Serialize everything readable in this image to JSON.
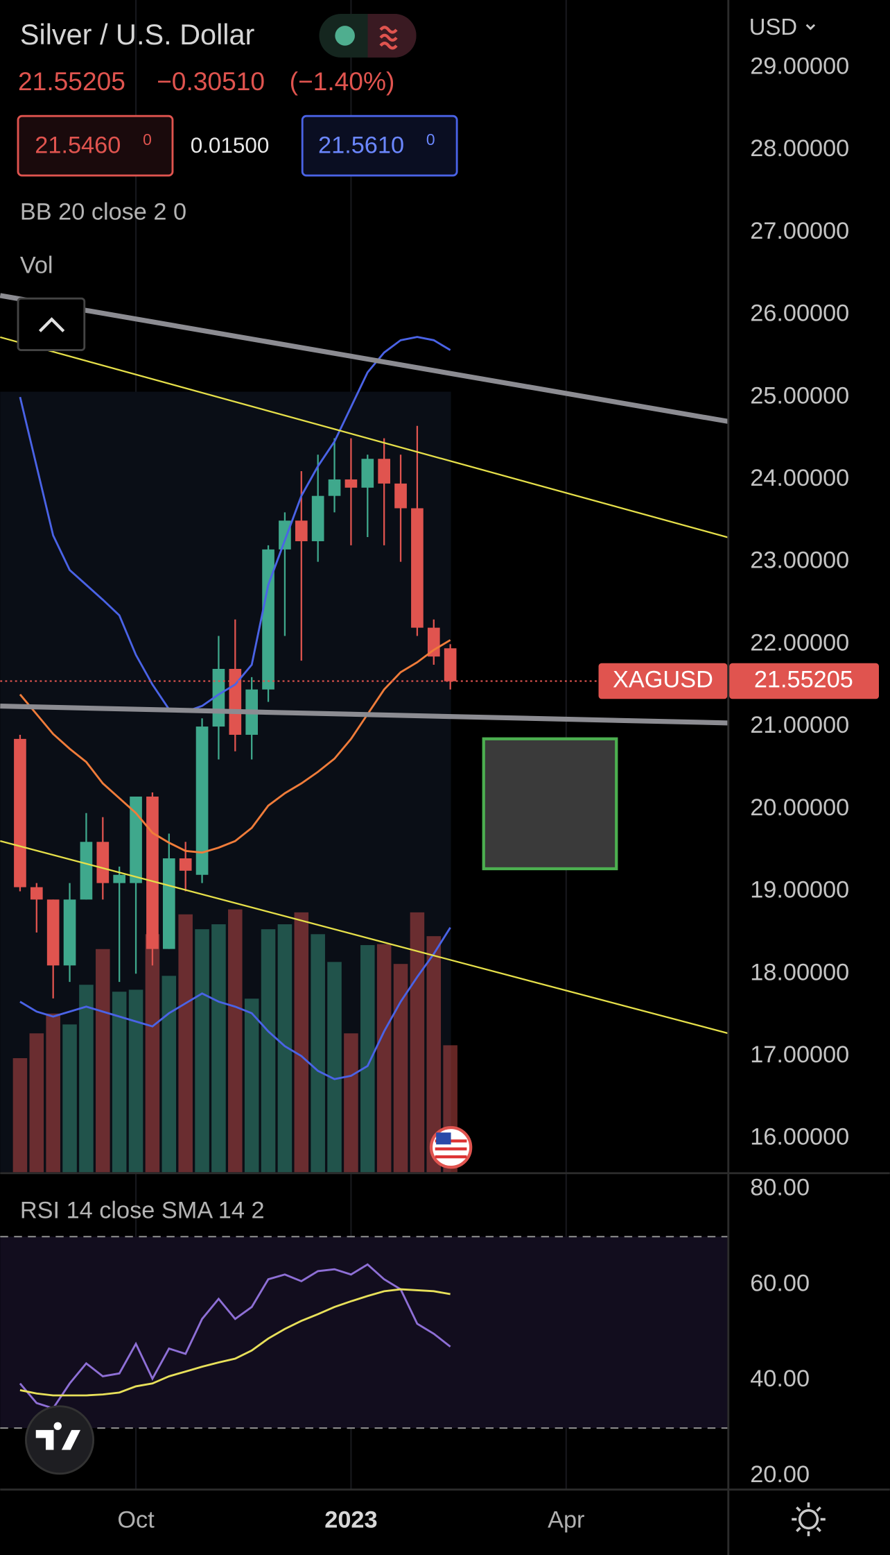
{
  "header": {
    "symbol": "Silver / U.S. Dollar",
    "change": "−0.30510",
    "change_pct": "(−1.40%)",
    "bid": "21.5460",
    "bid_sup": "0",
    "spread": "0.01500",
    "ask": "21.5610",
    "ask_sup": "0",
    "currency": "USD"
  },
  "chart_data": [
    {
      "type": "candlestick",
      "indicator_label": "BB 20 close 2 0",
      "volume_label": "Vol",
      "symbol_tag": "XAGUSD",
      "last_price": 21.55205,
      "x": [
        0,
        1,
        2,
        3,
        4,
        5,
        6,
        7,
        8,
        9,
        10,
        11,
        12,
        13,
        14,
        15,
        16,
        17,
        18,
        19,
        20,
        21,
        22,
        23,
        24,
        25,
        26
      ],
      "open": [
        20.85,
        19.05,
        18.9,
        18.1,
        18.9,
        19.6,
        19.1,
        19.1,
        20.15,
        18.3,
        19.4,
        19.2,
        21.0,
        21.7,
        20.9,
        21.45,
        23.15,
        23.5,
        23.25,
        23.8,
        24.0,
        23.9,
        24.25,
        23.95,
        23.65,
        22.2,
        21.95
      ],
      "high": [
        20.9,
        19.1,
        18.9,
        19.1,
        19.95,
        19.9,
        19.3,
        20.15,
        20.2,
        19.7,
        19.6,
        21.1,
        22.1,
        22.3,
        21.6,
        23.2,
        23.6,
        24.1,
        24.3,
        24.5,
        24.5,
        24.3,
        24.5,
        24.3,
        24.65,
        22.3,
        22.0
      ],
      "low": [
        19.0,
        18.5,
        17.7,
        17.9,
        18.9,
        18.9,
        17.9,
        18.0,
        18.1,
        18.3,
        19.0,
        19.1,
        20.6,
        20.7,
        20.6,
        21.3,
        22.1,
        21.8,
        23.0,
        23.6,
        23.2,
        23.3,
        23.2,
        23.0,
        22.1,
        21.75,
        21.45
      ],
      "close": [
        19.05,
        18.9,
        18.1,
        18.9,
        19.6,
        19.1,
        19.2,
        20.15,
        18.3,
        19.4,
        19.25,
        21.0,
        21.7,
        20.9,
        21.45,
        23.15,
        23.5,
        23.25,
        23.8,
        24.0,
        23.9,
        24.25,
        23.95,
        23.65,
        22.2,
        21.85,
        21.55
      ],
      "volume": [
        115,
        140,
        160,
        149,
        189,
        225,
        182,
        184,
        240,
        198,
        260,
        245,
        250,
        265,
        175,
        245,
        250,
        262,
        240,
        212,
        140,
        229,
        230,
        210,
        262,
        238,
        128
      ],
      "up_color": "#3fa88c",
      "down_color": "#e0544f",
      "series": [
        {
          "color": "#4a63e6",
          "values": [
            25.0,
            24.16,
            23.32,
            22.9,
            22.72,
            22.54,
            22.35,
            21.87,
            21.51,
            21.21,
            21.18,
            21.25,
            21.39,
            21.51,
            21.75,
            22.72,
            23.26,
            23.8,
            24.16,
            24.46,
            24.88,
            25.3,
            25.54,
            25.69,
            25.73,
            25.69,
            25.57
          ]
        },
        {
          "color": "#f07c3a",
          "values": [
            21.39,
            21.15,
            20.91,
            20.73,
            20.57,
            20.31,
            20.13,
            19.95,
            19.71,
            19.59,
            19.49,
            19.47,
            19.53,
            19.61,
            19.77,
            20.04,
            20.19,
            20.31,
            20.45,
            20.61,
            20.85,
            21.15,
            21.45,
            21.66,
            21.78,
            21.93,
            22.05
          ]
        },
        {
          "color": "#4a63e6",
          "values": [
            17.66,
            17.54,
            17.48,
            17.54,
            17.6,
            17.54,
            17.48,
            17.42,
            17.36,
            17.52,
            17.64,
            17.76,
            17.66,
            17.6,
            17.52,
            17.3,
            17.12,
            17.0,
            16.82,
            16.72,
            16.76,
            16.88,
            17.3,
            17.66,
            17.96,
            18.24,
            18.56
          ]
        }
      ],
      "xlim": [
        -1.2,
        42.8
      ],
      "xticks": [
        {
          "value": 7,
          "label": "Oct"
        },
        {
          "value": 20,
          "label": "2023"
        },
        {
          "value": 33,
          "label": "Apr"
        }
      ],
      "ylim": [
        15.59,
        29.82
      ],
      "yticks": [
        {
          "value": 29,
          "label": "29.00000"
        },
        {
          "value": 28,
          "label": "28.00000"
        },
        {
          "value": 27,
          "label": "27.00000"
        },
        {
          "value": 26,
          "label": "26.00000"
        },
        {
          "value": 25,
          "label": "25.00000"
        },
        {
          "value": 24,
          "label": "24.00000"
        },
        {
          "value": 23,
          "label": "23.00000"
        },
        {
          "value": 22,
          "label": "22.00000"
        },
        {
          "value": 21,
          "label": "21.00000"
        },
        {
          "value": 20,
          "label": "20.00000"
        },
        {
          "value": 19,
          "label": "19.00000"
        },
        {
          "value": 18,
          "label": "18.00000"
        },
        {
          "value": 17,
          "label": "17.00000"
        },
        {
          "value": 16,
          "label": "16.00000"
        }
      ],
      "grid": true
    },
    {
      "type": "line",
      "title": "RSI 14 close SMA 14 2",
      "x": [
        0,
        1,
        2,
        3,
        4,
        5,
        6,
        7,
        8,
        9,
        10,
        11,
        12,
        13,
        14,
        15,
        16,
        17,
        18,
        19,
        20,
        21,
        22,
        23,
        24,
        25,
        26
      ],
      "series": [
        {
          "color": "#8e6fd6",
          "values": [
            39.3,
            35.2,
            34.1,
            39.3,
            43.5,
            40.8,
            41.4,
            47.6,
            40.3,
            46.6,
            45.5,
            52.8,
            57.0,
            52.8,
            55.3,
            61.1,
            62.1,
            60.7,
            62.8,
            63.2,
            62.1,
            64.2,
            61.1,
            59.0,
            51.8,
            49.7,
            47.0
          ]
        },
        {
          "color": "#e8e05a",
          "values": [
            37.9,
            37.2,
            36.8,
            36.8,
            36.8,
            37.0,
            37.4,
            38.7,
            39.3,
            40.8,
            41.8,
            42.8,
            43.7,
            44.5,
            46.2,
            48.7,
            50.7,
            52.4,
            53.8,
            55.3,
            56.5,
            57.6,
            58.6,
            59.0,
            58.8,
            58.6,
            58.0
          ]
        }
      ],
      "xlim": [
        -1.2,
        42.8
      ],
      "ylim": [
        17.1,
        83.3
      ],
      "yticks": [
        {
          "value": 80,
          "label": "80.00"
        },
        {
          "value": 60,
          "label": "60.00"
        },
        {
          "value": 40,
          "label": "40.00"
        },
        {
          "value": 20,
          "label": "20.00"
        }
      ],
      "grid": true
    }
  ]
}
